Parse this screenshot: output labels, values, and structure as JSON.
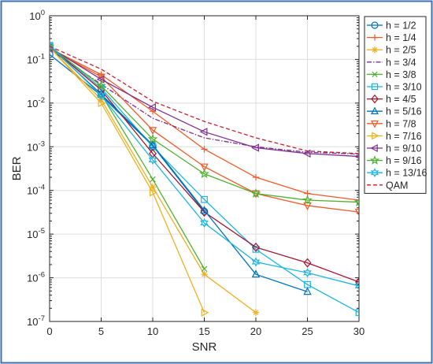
{
  "chart_data": {
    "type": "line",
    "title": "",
    "xlabel": "SNR",
    "ylabel": "BER",
    "x": [
      0,
      5,
      10,
      15,
      20,
      25,
      30
    ],
    "xlim": [
      0,
      30
    ],
    "ylim": [
      1e-07,
      1
    ],
    "yscale": "log",
    "grid": true,
    "legend_position": "right",
    "x_tick_labels": [
      "0",
      "5",
      "10",
      "15",
      "20",
      "25",
      "30"
    ],
    "y_tick_labels": [
      {
        "base": "10",
        "exp": "-7"
      },
      {
        "base": "10",
        "exp": "-6"
      },
      {
        "base": "10",
        "exp": "-5"
      },
      {
        "base": "10",
        "exp": "-4"
      },
      {
        "base": "10",
        "exp": "-3"
      },
      {
        "base": "10",
        "exp": "-2"
      },
      {
        "base": "10",
        "exp": "-1"
      },
      {
        "base": "10",
        "exp": "0"
      }
    ],
    "series": [
      {
        "name": "h = 1/2",
        "color": "#0072BD",
        "marker": "circle",
        "dash": "solid",
        "x": [
          0,
          5,
          10,
          15
        ],
        "values": [
          0.13,
          0.015,
          0.00105,
          3.3e-05
        ]
      },
      {
        "name": "h = 1/4",
        "color": "#F05A28",
        "marker": "plus",
        "dash": "solid",
        "x": [
          0,
          5,
          10,
          15,
          20,
          25,
          30
        ],
        "values": [
          0.18,
          0.045,
          0.0065,
          0.00088,
          0.0002,
          8.5e-05,
          6e-05
        ]
      },
      {
        "name": "h = 2/5",
        "color": "#EDB120",
        "marker": "asterisk",
        "dash": "solid",
        "x": [
          0,
          5,
          10,
          15,
          20
        ],
        "values": [
          0.19,
          0.012,
          0.00012,
          1.2e-06,
          1.6e-07
        ]
      },
      {
        "name": "h = 3/4",
        "color": "#7E2F8E",
        "marker": "none",
        "dash": "dashdot",
        "x": [
          0,
          5,
          10,
          15,
          20,
          25,
          30
        ],
        "values": [
          0.17,
          0.027,
          0.0045,
          0.0016,
          0.001,
          0.00075,
          0.00068
        ]
      },
      {
        "name": "h = 3/8",
        "color": "#4FB030",
        "marker": "x",
        "dash": "solid",
        "x": [
          0,
          5,
          10,
          15
        ],
        "values": [
          0.2,
          0.016,
          0.00018,
          1.6e-06
        ]
      },
      {
        "name": "h = 3/10",
        "color": "#1BB5E0",
        "marker": "square",
        "dash": "solid",
        "x": [
          0,
          5,
          10,
          15,
          20,
          25,
          30
        ],
        "values": [
          0.21,
          0.022,
          0.001,
          6.2e-05,
          4.5e-06,
          7e-07,
          1.6e-07
        ]
      },
      {
        "name": "h = 4/5",
        "color": "#A2142F",
        "marker": "diamond",
        "dash": "solid",
        "x": [
          0,
          5,
          10,
          15,
          20,
          25,
          30
        ],
        "values": [
          0.2,
          0.02,
          0.0007,
          3.2e-05,
          5e-06,
          2.2e-06,
          8e-07
        ]
      },
      {
        "name": "h = 5/16",
        "color": "#0072BD",
        "marker": "triangle-up",
        "dash": "solid",
        "x": [
          0,
          5,
          10,
          15,
          20,
          25
        ],
        "values": [
          0.2,
          0.016,
          0.0011,
          3.5e-05,
          1.2e-06,
          4.8e-07
        ]
      },
      {
        "name": "h = 7/8",
        "color": "#F05A28",
        "marker": "triangle-down",
        "dash": "solid",
        "x": [
          0,
          5,
          10,
          15,
          20,
          25,
          30
        ],
        "values": [
          0.18,
          0.04,
          0.0024,
          0.00035,
          8.5e-05,
          4.5e-05,
          3.2e-05
        ]
      },
      {
        "name": "h = 7/16",
        "color": "#EDB120",
        "marker": "triangle-right",
        "dash": "solid",
        "x": [
          0,
          5,
          10,
          15
        ],
        "values": [
          0.19,
          0.01,
          9e-05,
          1.6e-07
        ]
      },
      {
        "name": "h = 9/10",
        "color": "#7E2F8E",
        "marker": "triangle-left",
        "dash": "solid",
        "x": [
          0,
          5,
          10,
          15,
          20,
          25,
          30
        ],
        "values": [
          0.19,
          0.035,
          0.008,
          0.0022,
          0.00095,
          0.0007,
          0.0006
        ]
      },
      {
        "name": "h = 9/16",
        "color": "#4FB030",
        "marker": "pentagram",
        "dash": "solid",
        "x": [
          0,
          5,
          10,
          15,
          20,
          25,
          30
        ],
        "values": [
          0.2,
          0.025,
          0.0015,
          0.00024,
          8.5e-05,
          6e-05,
          5.4e-05
        ]
      },
      {
        "name": "h = 13/16",
        "color": "#1BB5E0",
        "marker": "hexagram",
        "dash": "solid",
        "x": [
          0,
          5,
          10,
          15,
          20,
          25,
          30
        ],
        "values": [
          0.21,
          0.015,
          0.0005,
          1.8e-05,
          2.3e-06,
          1.3e-06,
          6.5e-07
        ]
      },
      {
        "name": "QAM",
        "color": "#C8202F",
        "marker": "none",
        "dash": "dashed",
        "x": [
          0,
          5,
          10,
          15,
          20,
          25,
          30
        ],
        "values": [
          0.2,
          0.06,
          0.011,
          0.0038,
          0.0016,
          0.0008,
          0.0007
        ]
      }
    ]
  }
}
